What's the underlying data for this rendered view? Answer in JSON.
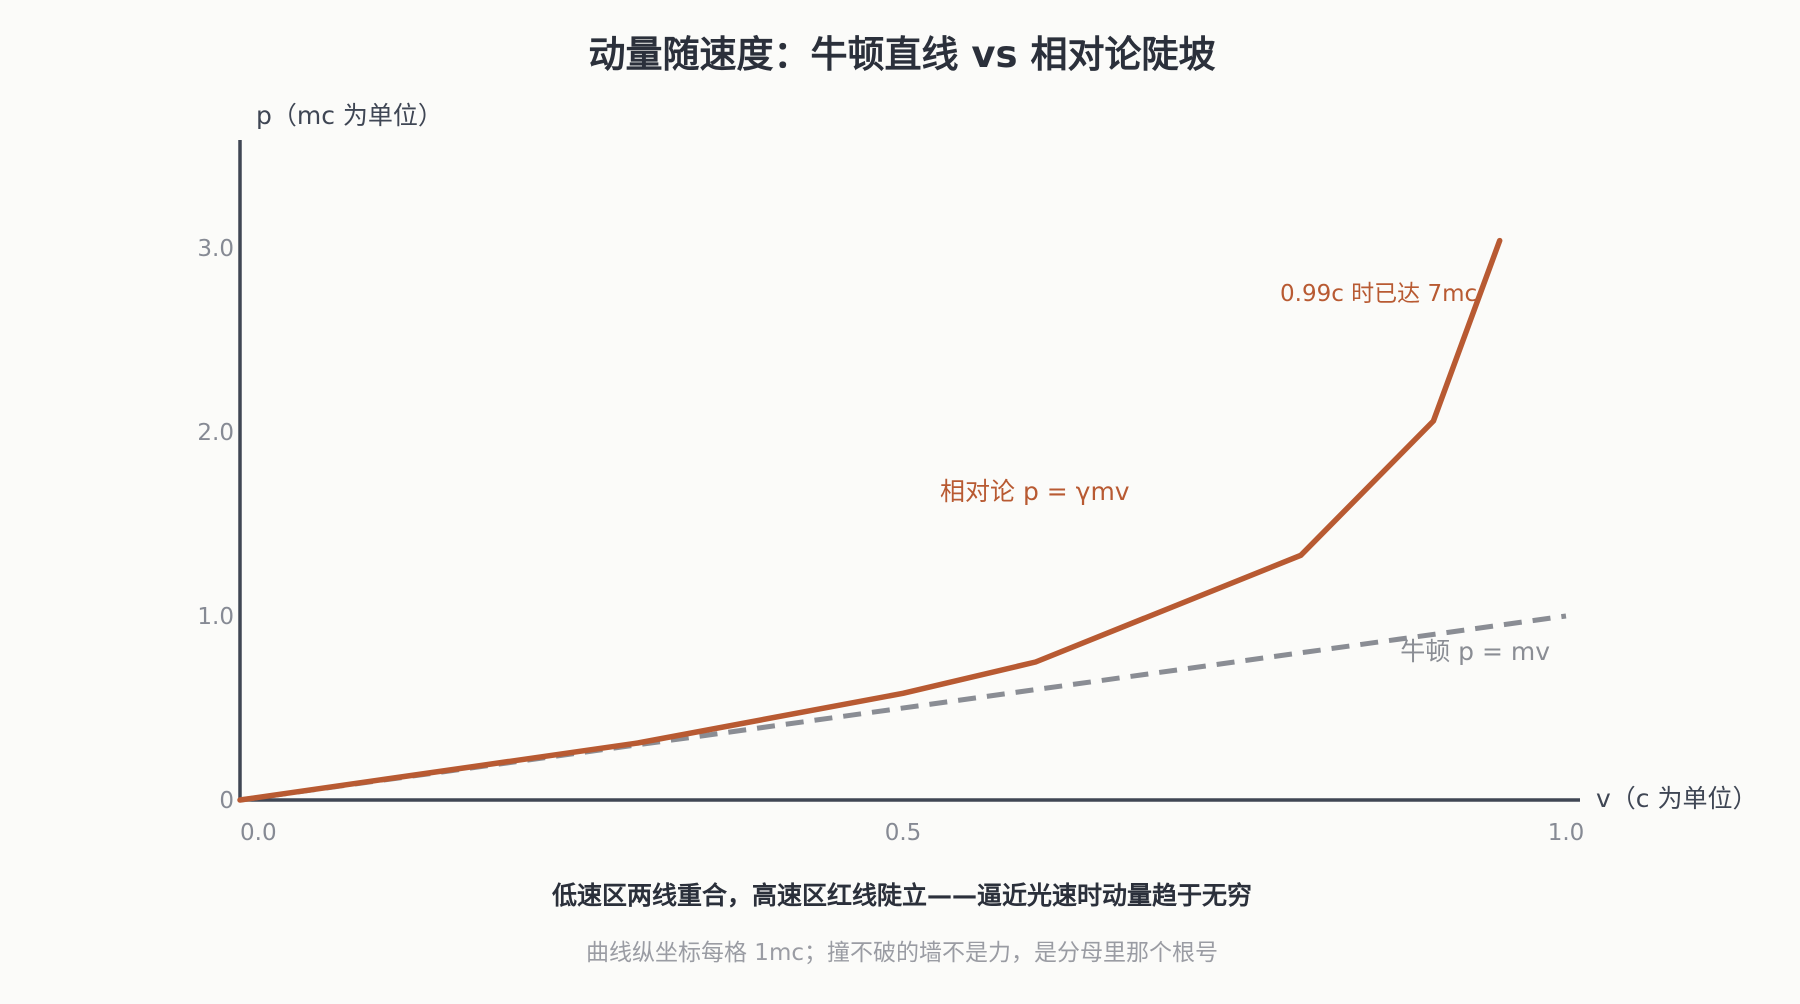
{
  "chart_data": {
    "type": "line",
    "title": "动量随速度：牛顿直线 vs 相对论陡坡",
    "ylabel": "p（mc 为单位）",
    "xlabel": "v（c 为单位）",
    "x_ticks": [
      "0.0",
      "0.5",
      "1.0"
    ],
    "x_tick_values": [
      0,
      0.5,
      1.0
    ],
    "y_ticks": [
      "0",
      "1.0",
      "2.0",
      "3.0"
    ],
    "y_tick_values": [
      0,
      1,
      2,
      3
    ],
    "xlim": [
      0,
      1.0
    ],
    "ylim": [
      0,
      3.55
    ],
    "grid": false,
    "series": [
      {
        "name": "相对论 p = γmv",
        "style": "solid",
        "color": "#b85a32",
        "x": [
          0,
          0.3,
          0.5,
          0.6,
          0.8,
          0.9,
          0.95
        ],
        "y": [
          0,
          0.31,
          0.58,
          0.75,
          1.33,
          2.06,
          3.04
        ]
      },
      {
        "name": "牛顿 p = mv",
        "style": "dashed",
        "color": "#8a8d94",
        "x": [
          0,
          1.0
        ],
        "y": [
          0,
          1.0
        ]
      }
    ],
    "annotations": [
      {
        "id": "peak-note",
        "text": "0.99c 时已达 7mc",
        "color": "#b85a32"
      }
    ],
    "caption": "低速区两线重合，高速区红线陡立——逼近光速时动量趋于无穷",
    "note": "曲线纵坐标每格 1mc；撞不破的墙不是力，是分母里那个根号"
  },
  "colors": {
    "background": "#fbfbf9",
    "axis": "#3f4654",
    "tick_label": "#868a94",
    "title": "#2b303b",
    "note": "#9a9ca3"
  }
}
